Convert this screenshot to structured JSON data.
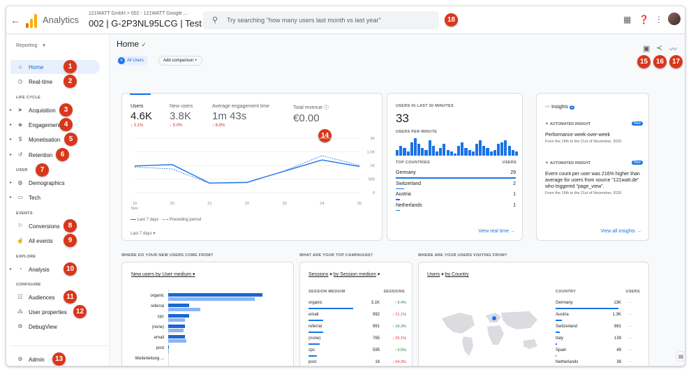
{
  "topbar": {
    "app_name": "Analytics",
    "breadcrumb": "121WATT GmbH > 002 - 121WATT Google ...",
    "property": "002 | G-2P3NL95LCG | Test",
    "search_placeholder": "Try searching \"how many users last month vs last year\""
  },
  "sidebar": {
    "reporting_label": "Reporting",
    "items": {
      "home": "Home",
      "realtime": "Real-time",
      "acquisition": "Acquisition",
      "engagement": "Engagement",
      "monetisation": "Monetisation",
      "retention": "Retention",
      "demographics": "Demographics",
      "tech": "Tech",
      "conversions": "Conversions",
      "all_events": "All events",
      "analysis": "Analysis",
      "audiences": "Audiences",
      "user_properties": "User properties",
      "debugview": "DebugView",
      "admin": "Admin"
    },
    "sections": {
      "life_cycle": "LIFE CYCLE",
      "user": "USER",
      "events": "EVENTS",
      "explore": "EXPLORE",
      "configure": "CONFIGURE"
    }
  },
  "badges": [
    "1",
    "2",
    "3",
    "4",
    "5",
    "6",
    "7",
    "8",
    "9",
    "10",
    "11",
    "12",
    "13",
    "14",
    "15",
    "16",
    "17",
    "18"
  ],
  "home": {
    "title": "Home",
    "chip_all_users": "All Users",
    "chip_avatar": "A",
    "add_comparison": "Add comparison"
  },
  "metrics": {
    "users": {
      "label": "Users",
      "value": "4.6K",
      "change": "↓ 3.1%"
    },
    "new_users": {
      "label": "New users",
      "value": "3.8K",
      "change": "↓ 5.0%"
    },
    "engagement": {
      "label": "Average engagement time",
      "value": "1m 43s",
      "change": "↓ 6.8%"
    },
    "revenue": {
      "label": "Total revenue",
      "value": "€0.00"
    },
    "legend_last": "Last 7 days",
    "legend_prev": "Preceding period",
    "date_range": "Last 7 days",
    "x_labels": [
      "19\nNov",
      "20",
      "21",
      "22",
      "23",
      "24",
      "25"
    ],
    "x_labels_disp": [
      "19",
      "20",
      "21",
      "22",
      "23",
      "24",
      "25"
    ],
    "x_sub": "Nov",
    "y_labels": [
      "2K",
      "1.5K",
      "1K",
      "500",
      "0"
    ]
  },
  "chart_data": {
    "type": "line",
    "categories": [
      "19 Nov",
      "20",
      "21",
      "22",
      "23",
      "24",
      "25"
    ],
    "series": [
      {
        "name": "Last 7 days",
        "values": [
          980,
          1030,
          350,
          380,
          790,
          1200,
          960
        ]
      },
      {
        "name": "Preceding period",
        "values": [
          940,
          870,
          340,
          360,
          800,
          1360,
          1000
        ]
      }
    ],
    "ylim": [
      0,
      2000
    ]
  },
  "realtime": {
    "title": "USERS IN LAST 30 MINUTES",
    "value": "33",
    "per_minute": "USERS PER MINUTE",
    "bars": [
      3,
      5,
      4,
      2,
      7,
      9,
      6,
      4,
      3,
      8,
      5,
      2,
      4,
      6,
      3,
      2,
      1,
      5,
      7,
      4,
      3,
      2,
      6,
      8,
      5,
      4,
      2,
      3,
      6,
      7,
      8,
      5,
      3,
      2
    ],
    "top_countries": "TOP COUNTRIES",
    "users_col": "USERS",
    "countries": [
      {
        "name": "Germany",
        "value": "29"
      },
      {
        "name": "Switzerland",
        "value": "2"
      },
      {
        "name": "Austria",
        "value": "1"
      },
      {
        "name": "Netherlands",
        "value": "1"
      }
    ],
    "link": "View real time"
  },
  "insights": {
    "title": "Insights",
    "count": "2",
    "items": [
      {
        "tag": "AUTOMATED INSIGHT",
        "new": "New",
        "text": "Performance week-over-week",
        "sub": "From the 15th to the 21st of November, 2020"
      },
      {
        "tag": "AUTOMATED INSIGHT",
        "new": "New",
        "text": "Event count per user was 216% higher than average for users from source \"121watt.de\" who triggered \"page_view\".",
        "sub": "From the 15th to the 21st of November, 2020"
      }
    ],
    "link": "View all insights"
  },
  "new_users": {
    "question": "WHERE DO YOUR NEW USERS COME FROM?",
    "selector": "New users by User medium",
    "rows": [
      {
        "label": "organic",
        "cur": 100,
        "prev": 92
      },
      {
        "label": "referral",
        "cur": 22,
        "prev": 34
      },
      {
        "label": "cpc",
        "cur": 22,
        "prev": 18
      },
      {
        "label": "(none)",
        "cur": 18,
        "prev": 16
      },
      {
        "label": "email",
        "cur": 18,
        "prev": 19
      },
      {
        "label": "post",
        "cur": 1,
        "prev": 1
      },
      {
        "label": "Weiterleitung ...",
        "cur": 0,
        "prev": 0
      }
    ]
  },
  "campaigns": {
    "question": "WHAT ARE YOUR TOP CAMPAIGNS?",
    "selector_metric": "Sessions",
    "selector_dim": "by Session medium",
    "col_dim": "SESSION MEDIUM",
    "col_val": "SESSIONS",
    "rows": [
      {
        "name": "organic",
        "value": "3.1K",
        "change": "↑ 5.4%",
        "dir": "up"
      },
      {
        "name": "email",
        "value": "992",
        "change": "↓ 21.1%",
        "dir": "down"
      },
      {
        "name": "referral",
        "value": "991",
        "change": "↑ 16.3%",
        "dir": "up"
      },
      {
        "name": "(none)",
        "value": "765",
        "change": "↓ 25.1%",
        "dir": "down"
      },
      {
        "name": "cpc",
        "value": "595",
        "change": "↑ 5.5%",
        "dir": "up"
      },
      {
        "name": "post",
        "value": "16",
        "change": "↓ 54.3%",
        "dir": "down"
      }
    ]
  },
  "countries_card": {
    "question": "WHERE ARE YOUR USERS VISITING FROM?",
    "selector_metric": "Users",
    "selector_dim": "by Country",
    "col_country": "COUNTRY",
    "col_users": "USERS",
    "rows": [
      {
        "name": "Germany",
        "value": "13K"
      },
      {
        "name": "Austria",
        "value": "1.3K"
      },
      {
        "name": "Switzerland",
        "value": "881"
      },
      {
        "name": "Italy",
        "value": "139"
      },
      {
        "name": "Spain",
        "value": "49"
      },
      {
        "name": "Netherlands",
        "value": "38"
      }
    ],
    "dash": "-"
  }
}
